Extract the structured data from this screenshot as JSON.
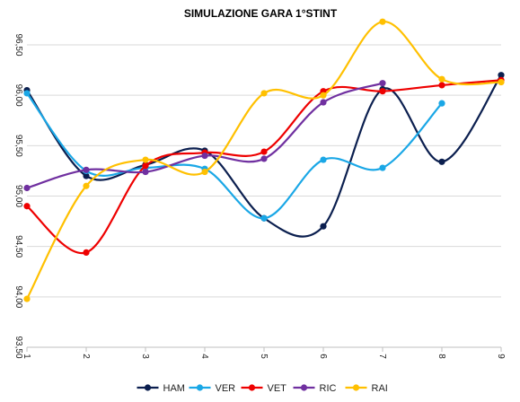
{
  "chart_data": {
    "type": "line",
    "title": "SIMULAZIONE GARA 1°STINT",
    "xlabel": "",
    "ylabel": "",
    "x": [
      1,
      2,
      3,
      4,
      5,
      6,
      7,
      8,
      9
    ],
    "x_tick_labels": [
      "1",
      "2",
      "3",
      "4",
      "5",
      "6",
      "7",
      "8",
      "9"
    ],
    "y_tick_labels": [
      "93,50",
      "94,00",
      "94,50",
      "95,00",
      "95,50",
      "96,00",
      "96,50"
    ],
    "ylim": [
      93.5,
      96.5
    ],
    "grid": true,
    "smooth": true,
    "legend_position": "bottom",
    "series": [
      {
        "name": "HAM",
        "color": "#0b1f4f",
        "values": [
          96.05,
          95.2,
          95.31,
          95.45,
          94.78,
          94.7,
          96.06,
          95.34,
          96.2
        ]
      },
      {
        "name": "VER",
        "color": "#1aa7e6",
        "values": [
          96.02,
          95.25,
          95.28,
          95.27,
          94.78,
          95.36,
          95.28,
          95.92,
          null
        ]
      },
      {
        "name": "VET",
        "color": "#ee0000",
        "values": [
          94.9,
          94.44,
          95.3,
          95.43,
          95.44,
          96.04,
          96.04,
          96.1,
          96.15
        ]
      },
      {
        "name": "RIC",
        "color": "#7030a0",
        "values": [
          95.08,
          95.26,
          95.24,
          95.4,
          95.37,
          95.93,
          96.12,
          null,
          null
        ]
      },
      {
        "name": "RAI",
        "color": "#ffc000",
        "values": [
          93.98,
          95.1,
          95.36,
          95.24,
          96.02,
          96.0,
          96.73,
          96.16,
          96.13
        ]
      }
    ]
  }
}
